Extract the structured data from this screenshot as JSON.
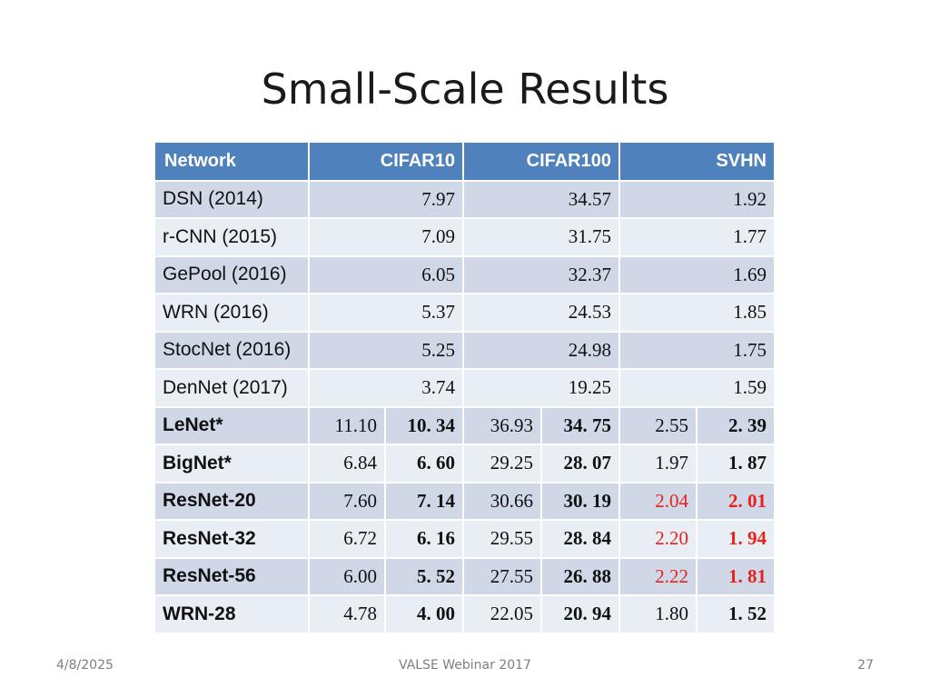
{
  "slide": {
    "title": "Small-Scale Results",
    "footer_date": "4/8/2025",
    "footer_center": "VALSE Webinar 2017",
    "page_number": "27"
  },
  "table": {
    "headers": [
      "Network",
      "CIFAR10",
      "CIFAR100",
      "SVHN"
    ],
    "single_rows": [
      {
        "name": "DSN (2014)",
        "cifar10": "7.97",
        "cifar100": "34.57",
        "svhn": "1.92"
      },
      {
        "name": "r-CNN (2015)",
        "cifar10": "7.09",
        "cifar100": "31.75",
        "svhn": "1.77"
      },
      {
        "name": "GePool (2016)",
        "cifar10": "6.05",
        "cifar100": "32.37",
        "svhn": "1.69"
      },
      {
        "name": "WRN (2016)",
        "cifar10": "5.37",
        "cifar100": "24.53",
        "svhn": "1.85"
      },
      {
        "name": "StocNet (2016)",
        "cifar10": "5.25",
        "cifar100": "24.98",
        "svhn": "1.75"
      },
      {
        "name": "DenNet (2017)",
        "cifar10": "3.74",
        "cifar100": "19.25",
        "svhn": "1.59"
      }
    ],
    "paired_rows": [
      {
        "name": "LeNet*",
        "c10_a": "11.10",
        "c10_b": "10. 34",
        "c100_a": "36.93",
        "c100_b": "34. 75",
        "svhn_a": "2.55",
        "svhn_b": "2. 39"
      },
      {
        "name": "BigNet*",
        "c10_a": "6.84",
        "c10_b": "6. 60",
        "c100_a": "29.25",
        "c100_b": "28. 07",
        "svhn_a": "1.97",
        "svhn_b": "1. 87"
      },
      {
        "name": "ResNet-20",
        "c10_a": "7.60",
        "c10_b": "7. 14",
        "c100_a": "30.66",
        "c100_b": "30. 19",
        "svhn_a": "2.04",
        "svhn_b": "2. 01"
      },
      {
        "name": "ResNet-32",
        "c10_a": "6.72",
        "c10_b": "6. 16",
        "c100_a": "29.55",
        "c100_b": "28. 84",
        "svhn_a": "2.20",
        "svhn_b": "1. 94"
      },
      {
        "name": "ResNet-56",
        "c10_a": "6.00",
        "c10_b": "5. 52",
        "c100_a": "27.55",
        "c100_b": "26. 88",
        "svhn_a": "2.22",
        "svhn_b": "1. 81"
      },
      {
        "name": "WRN-28",
        "c10_a": "4.78",
        "c10_b": "4. 00",
        "c100_a": "22.05",
        "c100_b": "20. 94",
        "svhn_a": "1.80",
        "svhn_b": "1. 52"
      }
    ]
  },
  "colors": {
    "header_bg": "#4f81bd",
    "row_odd": "#d0d8e8",
    "row_even": "#e9edf4",
    "highlight_red": "#e8221a"
  }
}
